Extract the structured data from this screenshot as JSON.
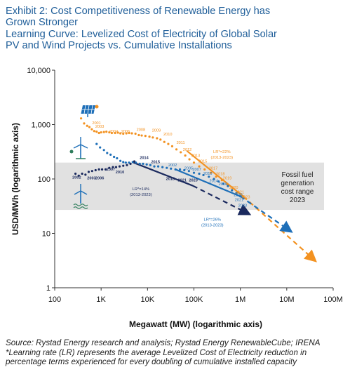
{
  "header": {
    "line1": "Exhibit 2: Cost Competitiveness of Renewable Energy has",
    "line2": "Grown Stronger",
    "line3": "Learning Curve: Levelized Cost of Electricity of Global Solar",
    "line4": "PV and Wind Projects vs. Cumulative Installations"
  },
  "footnote": {
    "source": "Source: Rystad Energy research and analysis; Rystad Energy RenewableCube; IRENA",
    "note1": "*Learning rate (LR) represents the average Levelized Cost of Electricity reduction in",
    "note2": "percentage terms experienced for every doubling of cumulative installed capacity"
  },
  "colors": {
    "solar": "#f39221",
    "offshore_wind": "#1e6fb8",
    "onshore_wind": "#1b2a5e",
    "band": "#e1e1e1",
    "title": "#1f5e99",
    "icon_green": "#2e7d5b"
  },
  "icons": [
    "solar-panel-icon",
    "wind-turbine-icon",
    "offshore-wind-turbine-icon"
  ],
  "chart_data": {
    "type": "scatter",
    "scale": "log-log",
    "xlabel": "Megawatt (MW) (logarithmic axis)",
    "ylabel": "USD/MWh (logarithmic axis)",
    "xlim": [
      100,
      1000000000
    ],
    "ylim": [
      1,
      10000
    ],
    "x_ticks": [
      {
        "v": 100,
        "label": "100"
      },
      {
        "v": 1000,
        "label": "1K"
      },
      {
        "v": 10000,
        "label": "10K"
      },
      {
        "v": 100000,
        "label": "100K"
      },
      {
        "v": 1000000,
        "label": "1M"
      },
      {
        "v": 10000000,
        "label": "10M"
      },
      {
        "v": 100000000,
        "label": "100M"
      }
    ],
    "y_ticks": [
      {
        "v": 1,
        "label": "1"
      },
      {
        "v": 10,
        "label": "10"
      },
      {
        "v": 100,
        "label": "100"
      },
      {
        "v": 1000,
        "label": "1,000"
      },
      {
        "v": 10000,
        "label": "10,000"
      }
    ],
    "band": {
      "ymin": 27,
      "ymax": 200,
      "label_lines": [
        "Fossil fuel",
        "generation",
        "cost range",
        "2023"
      ]
    },
    "series": [
      {
        "key": "solar",
        "dots": [
          [
            370,
            1300
          ],
          [
            430,
            1050
          ],
          [
            500,
            950
          ],
          [
            560,
            900
          ],
          [
            630,
            820
          ],
          [
            710,
            760
          ],
          [
            800,
            740
          ],
          [
            900,
            700
          ],
          [
            1000,
            720
          ],
          [
            1150,
            730
          ],
          [
            1300,
            740
          ],
          [
            1500,
            720
          ],
          [
            1700,
            700
          ],
          [
            2000,
            700
          ],
          [
            2300,
            710
          ],
          [
            2600,
            690
          ],
          [
            3000,
            680
          ],
          [
            3500,
            690
          ],
          [
            4000,
            700
          ],
          [
            4600,
            690
          ],
          [
            5500,
            680
          ],
          [
            6500,
            640
          ],
          [
            7500,
            630
          ],
          [
            9000,
            620
          ],
          [
            11000,
            600
          ],
          [
            13000,
            580
          ],
          [
            16000,
            560
          ],
          [
            19000,
            530
          ],
          [
            23000,
            480
          ],
          [
            28000,
            440
          ],
          [
            34000,
            400
          ],
          [
            42000,
            350
          ],
          [
            52000,
            310
          ],
          [
            65000,
            270
          ],
          [
            80000,
            230
          ],
          [
            100000,
            200
          ],
          [
            130000,
            170
          ],
          [
            170000,
            150
          ],
          [
            230000,
            130
          ],
          [
            300000,
            110
          ],
          [
            400000,
            95
          ],
          [
            520000,
            80
          ],
          [
            680000,
            68
          ],
          [
            900000,
            57
          ],
          [
            1150000,
            48
          ]
        ],
        "labels": [
          {
            "x": 640,
            "y": 1020,
            "text": "2001"
          },
          {
            "x": 750,
            "y": 870,
            "text": "2003"
          },
          {
            "x": 1500,
            "y": 710,
            "text": "2004"
          },
          {
            "x": 2700,
            "y": 710,
            "text": "2006"
          },
          {
            "x": 5800,
            "y": 760,
            "text": "2008"
          },
          {
            "x": 12500,
            "y": 740,
            "text": "2009"
          },
          {
            "x": 22000,
            "y": 630,
            "text": "2010"
          },
          {
            "x": 42000,
            "y": 440,
            "text": "2011"
          },
          {
            "x": 58000,
            "y": 330,
            "text": "2012"
          },
          {
            "x": 88000,
            "y": 255,
            "text": "2013"
          },
          {
            "x": 125000,
            "y": 200,
            "text": "2015"
          },
          {
            "x": 210000,
            "y": 150,
            "text": "2017"
          },
          {
            "x": 300000,
            "y": 118,
            "text": "2018"
          },
          {
            "x": 420000,
            "y": 98,
            "text": "2019"
          },
          {
            "x": 580000,
            "y": 66,
            "text": "2020"
          },
          {
            "x": 780000,
            "y": 54,
            "text": "2021"
          },
          {
            "x": 1050000,
            "y": 44,
            "text": "2023"
          }
        ],
        "trend": [
          [
            70000,
            330
          ],
          [
            1150000,
            48
          ]
        ],
        "projection": [
          [
            1150000,
            48
          ],
          [
            40000000,
            3.2
          ]
        ],
        "lr": {
          "x": 400000,
          "y": 300,
          "lines": [
            "LR*=22%",
            "(2013-2023)"
          ]
        }
      },
      {
        "key": "offshore_wind",
        "dots": [
          [
            800,
            440
          ],
          [
            950,
            380
          ],
          [
            1150,
            340
          ],
          [
            1350,
            300
          ],
          [
            1600,
            280
          ],
          [
            1900,
            255
          ],
          [
            2200,
            240
          ],
          [
            2600,
            215
          ],
          [
            3000,
            205
          ],
          [
            3400,
            200
          ],
          [
            4000,
            200
          ],
          [
            4800,
            205
          ],
          [
            5600,
            200
          ],
          [
            6800,
            190
          ],
          [
            8000,
            190
          ],
          [
            9600,
            185
          ],
          [
            11500,
            180
          ],
          [
            14000,
            170
          ],
          [
            17000,
            170
          ],
          [
            21000,
            165
          ],
          [
            26000,
            160
          ],
          [
            32000,
            155
          ],
          [
            40000,
            150
          ],
          [
            50000,
            150
          ],
          [
            62000,
            145
          ],
          [
            78000,
            140
          ],
          [
            100000,
            130
          ],
          [
            130000,
            125
          ],
          [
            160000,
            118
          ],
          [
            210000,
            110
          ],
          [
            270000,
            100
          ],
          [
            340000,
            90
          ],
          [
            430000,
            82
          ],
          [
            540000,
            74
          ],
          [
            660000,
            62
          ],
          [
            820000,
            55
          ],
          [
            1000000,
            48
          ]
        ],
        "labels": [
          {
            "x": 28000,
            "y": 170,
            "text": "2002"
          },
          {
            "x": 62000,
            "y": 150,
            "text": "2005"
          },
          {
            "x": 93000,
            "y": 142,
            "text": "2007"
          },
          {
            "x": 160000,
            "y": 120,
            "text": "2010"
          },
          {
            "x": 215000,
            "y": 88,
            "text": "2014"
          },
          {
            "x": 340000,
            "y": 77,
            "text": "2016"
          },
          {
            "x": 720000,
            "y": 48,
            "text": "2020"
          },
          {
            "x": 760000,
            "y": 39,
            "text": "2021"
          },
          {
            "x": 900000,
            "y": 31,
            "text": "2023"
          }
        ],
        "trend": [
          [
            40000,
            150
          ],
          [
            1000000,
            48
          ]
        ],
        "projection": [
          [
            1000000,
            48
          ],
          [
            12000000,
            11
          ]
        ],
        "lr": {
          "x": 250000,
          "y": 17,
          "lines": [
            "LR*=26%",
            "(2013-2023)"
          ]
        }
      },
      {
        "key": "onshore_wind",
        "dots": [
          [
            280,
            125
          ],
          [
            330,
            115
          ],
          [
            390,
            125
          ],
          [
            460,
            120
          ],
          [
            540,
            135
          ],
          [
            640,
            140
          ],
          [
            760,
            145
          ],
          [
            900,
            150
          ],
          [
            1050,
            150
          ],
          [
            1250,
            150
          ],
          [
            1500,
            160
          ],
          [
            1800,
            165
          ],
          [
            2100,
            165
          ],
          [
            2500,
            170
          ],
          [
            3000,
            175
          ],
          [
            3600,
            180
          ],
          [
            4300,
            190
          ],
          [
            5200,
            210
          ]
        ],
        "labels": [
          {
            "x": 240,
            "y": 102,
            "text": "2002"
          },
          {
            "x": 500,
            "y": 98,
            "text": "2003"
          },
          {
            "x": 750,
            "y": 98,
            "text": "2006"
          },
          {
            "x": 1300,
            "y": 142,
            "text": "2007"
          },
          {
            "x": 2050,
            "y": 126,
            "text": "2010"
          },
          {
            "x": 6800,
            "y": 232,
            "text": "2014"
          },
          {
            "x": 12000,
            "y": 196,
            "text": "2015"
          },
          {
            "x": 25000,
            "y": 96,
            "text": "2018"
          },
          {
            "x": 45000,
            "y": 90,
            "text": "2021"
          },
          {
            "x": 78000,
            "y": 90,
            "text": "2023"
          }
        ],
        "trend": [
          [
            5000,
            200
          ],
          [
            95000,
            75
          ]
        ],
        "projection": [
          [
            95000,
            75
          ],
          [
            1500000,
            23
          ]
        ],
        "lr": {
          "x": 7200,
          "y": 62,
          "lines": [
            "LR*=14%",
            "(2013-2023)"
          ]
        }
      }
    ]
  }
}
